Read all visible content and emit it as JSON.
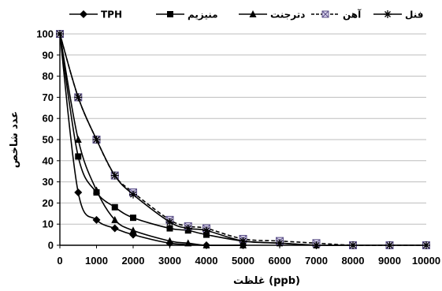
{
  "chart_data": {
    "type": "line",
    "title": "",
    "xlabel": "(ppb) غلظت",
    "ylabel": "عدد شاخص",
    "xlim": [
      0,
      10000
    ],
    "ylim": [
      0,
      100
    ],
    "x_ticks": [
      "0",
      "1000",
      "2000",
      "3000",
      "4000",
      "5000",
      "6000",
      "7000",
      "8000",
      "9000",
      "10000"
    ],
    "y_ticks": [
      "0",
      "10",
      "20",
      "30",
      "40",
      "50",
      "60",
      "70",
      "80",
      "90",
      "100"
    ],
    "grid": "horizontal",
    "legend_position": "top",
    "series": [
      {
        "name": "TPH",
        "marker": "diamond",
        "line": "solid",
        "color": "#000000",
        "points": [
          [
            0,
            100
          ],
          [
            500,
            25
          ],
          [
            1000,
            12
          ],
          [
            1500,
            8
          ],
          [
            2000,
            5
          ],
          [
            3000,
            1
          ],
          [
            4000,
            0
          ],
          [
            5000,
            0
          ]
        ]
      },
      {
        "name": "منیزیم",
        "marker": "square",
        "line": "solid",
        "color": "#000000",
        "points": [
          [
            0,
            100
          ],
          [
            500,
            42
          ],
          [
            1000,
            25
          ],
          [
            1500,
            18
          ],
          [
            2000,
            13
          ],
          [
            3000,
            8
          ],
          [
            3500,
            7
          ],
          [
            4000,
            5
          ],
          [
            5000,
            2
          ],
          [
            6000,
            1
          ],
          [
            7000,
            0
          ]
        ]
      },
      {
        "name": "دترجنت",
        "marker": "triangle",
        "line": "solid",
        "color": "#000000",
        "points": [
          [
            0,
            100
          ],
          [
            500,
            50
          ],
          [
            1000,
            26
          ],
          [
            1500,
            12
          ],
          [
            2000,
            7
          ],
          [
            3000,
            2
          ],
          [
            3500,
            1
          ],
          [
            4000,
            0
          ],
          [
            5000,
            0
          ]
        ]
      },
      {
        "name": "آهن",
        "marker": "square-x",
        "line": "dashed",
        "color": "#9b8cc4",
        "points": [
          [
            0,
            100
          ],
          [
            500,
            70
          ],
          [
            1000,
            50
          ],
          [
            1500,
            33
          ],
          [
            2000,
            25
          ],
          [
            3000,
            12
          ],
          [
            3500,
            9
          ],
          [
            4000,
            8
          ],
          [
            5000,
            3
          ],
          [
            6000,
            2
          ],
          [
            7000,
            1
          ],
          [
            8000,
            0
          ],
          [
            9000,
            0
          ],
          [
            10000,
            0
          ]
        ]
      },
      {
        "name": "فنل",
        "marker": "asterisk",
        "line": "solid",
        "color": "#000000",
        "points": [
          [
            0,
            100
          ],
          [
            500,
            70
          ],
          [
            1000,
            50
          ],
          [
            1500,
            33
          ],
          [
            2000,
            24
          ],
          [
            3000,
            11
          ],
          [
            3500,
            8
          ],
          [
            4000,
            7
          ],
          [
            5000,
            2
          ],
          [
            6000,
            1
          ],
          [
            7000,
            0
          ],
          [
            8000,
            0
          ],
          [
            9000,
            0
          ],
          [
            10000,
            0
          ]
        ]
      }
    ]
  }
}
